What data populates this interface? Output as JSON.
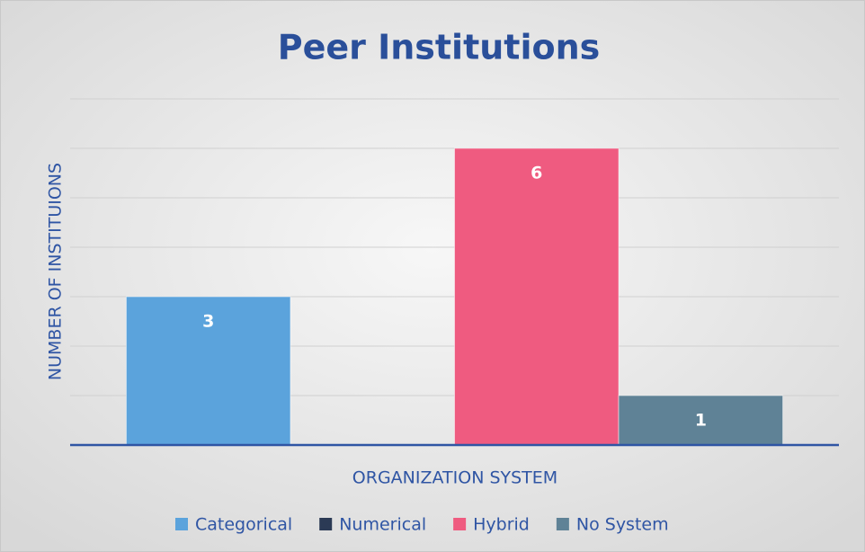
{
  "chart_data": {
    "type": "bar",
    "title": "Peer Institutions",
    "x_label": "ORGANIZATION SYSTEM",
    "y_label": "NUMBER OF INSTITUIONS",
    "categories": [
      null
    ],
    "series": [
      {
        "name": "Categorical",
        "color": "#5ba3dc",
        "values": [
          3
        ]
      },
      {
        "name": "Numerical",
        "color": "#2b3a55",
        "values": [
          0
        ]
      },
      {
        "name": "Hybrid",
        "color": "#ef5b80",
        "values": [
          6
        ]
      },
      {
        "name": "No System",
        "color": "#5f8296",
        "values": [
          1
        ]
      }
    ],
    "ylim": [
      0,
      7
    ],
    "yticks": [
      0,
      1,
      2,
      3,
      4,
      5,
      6,
      7
    ],
    "grid": true,
    "legend": "bottom"
  }
}
